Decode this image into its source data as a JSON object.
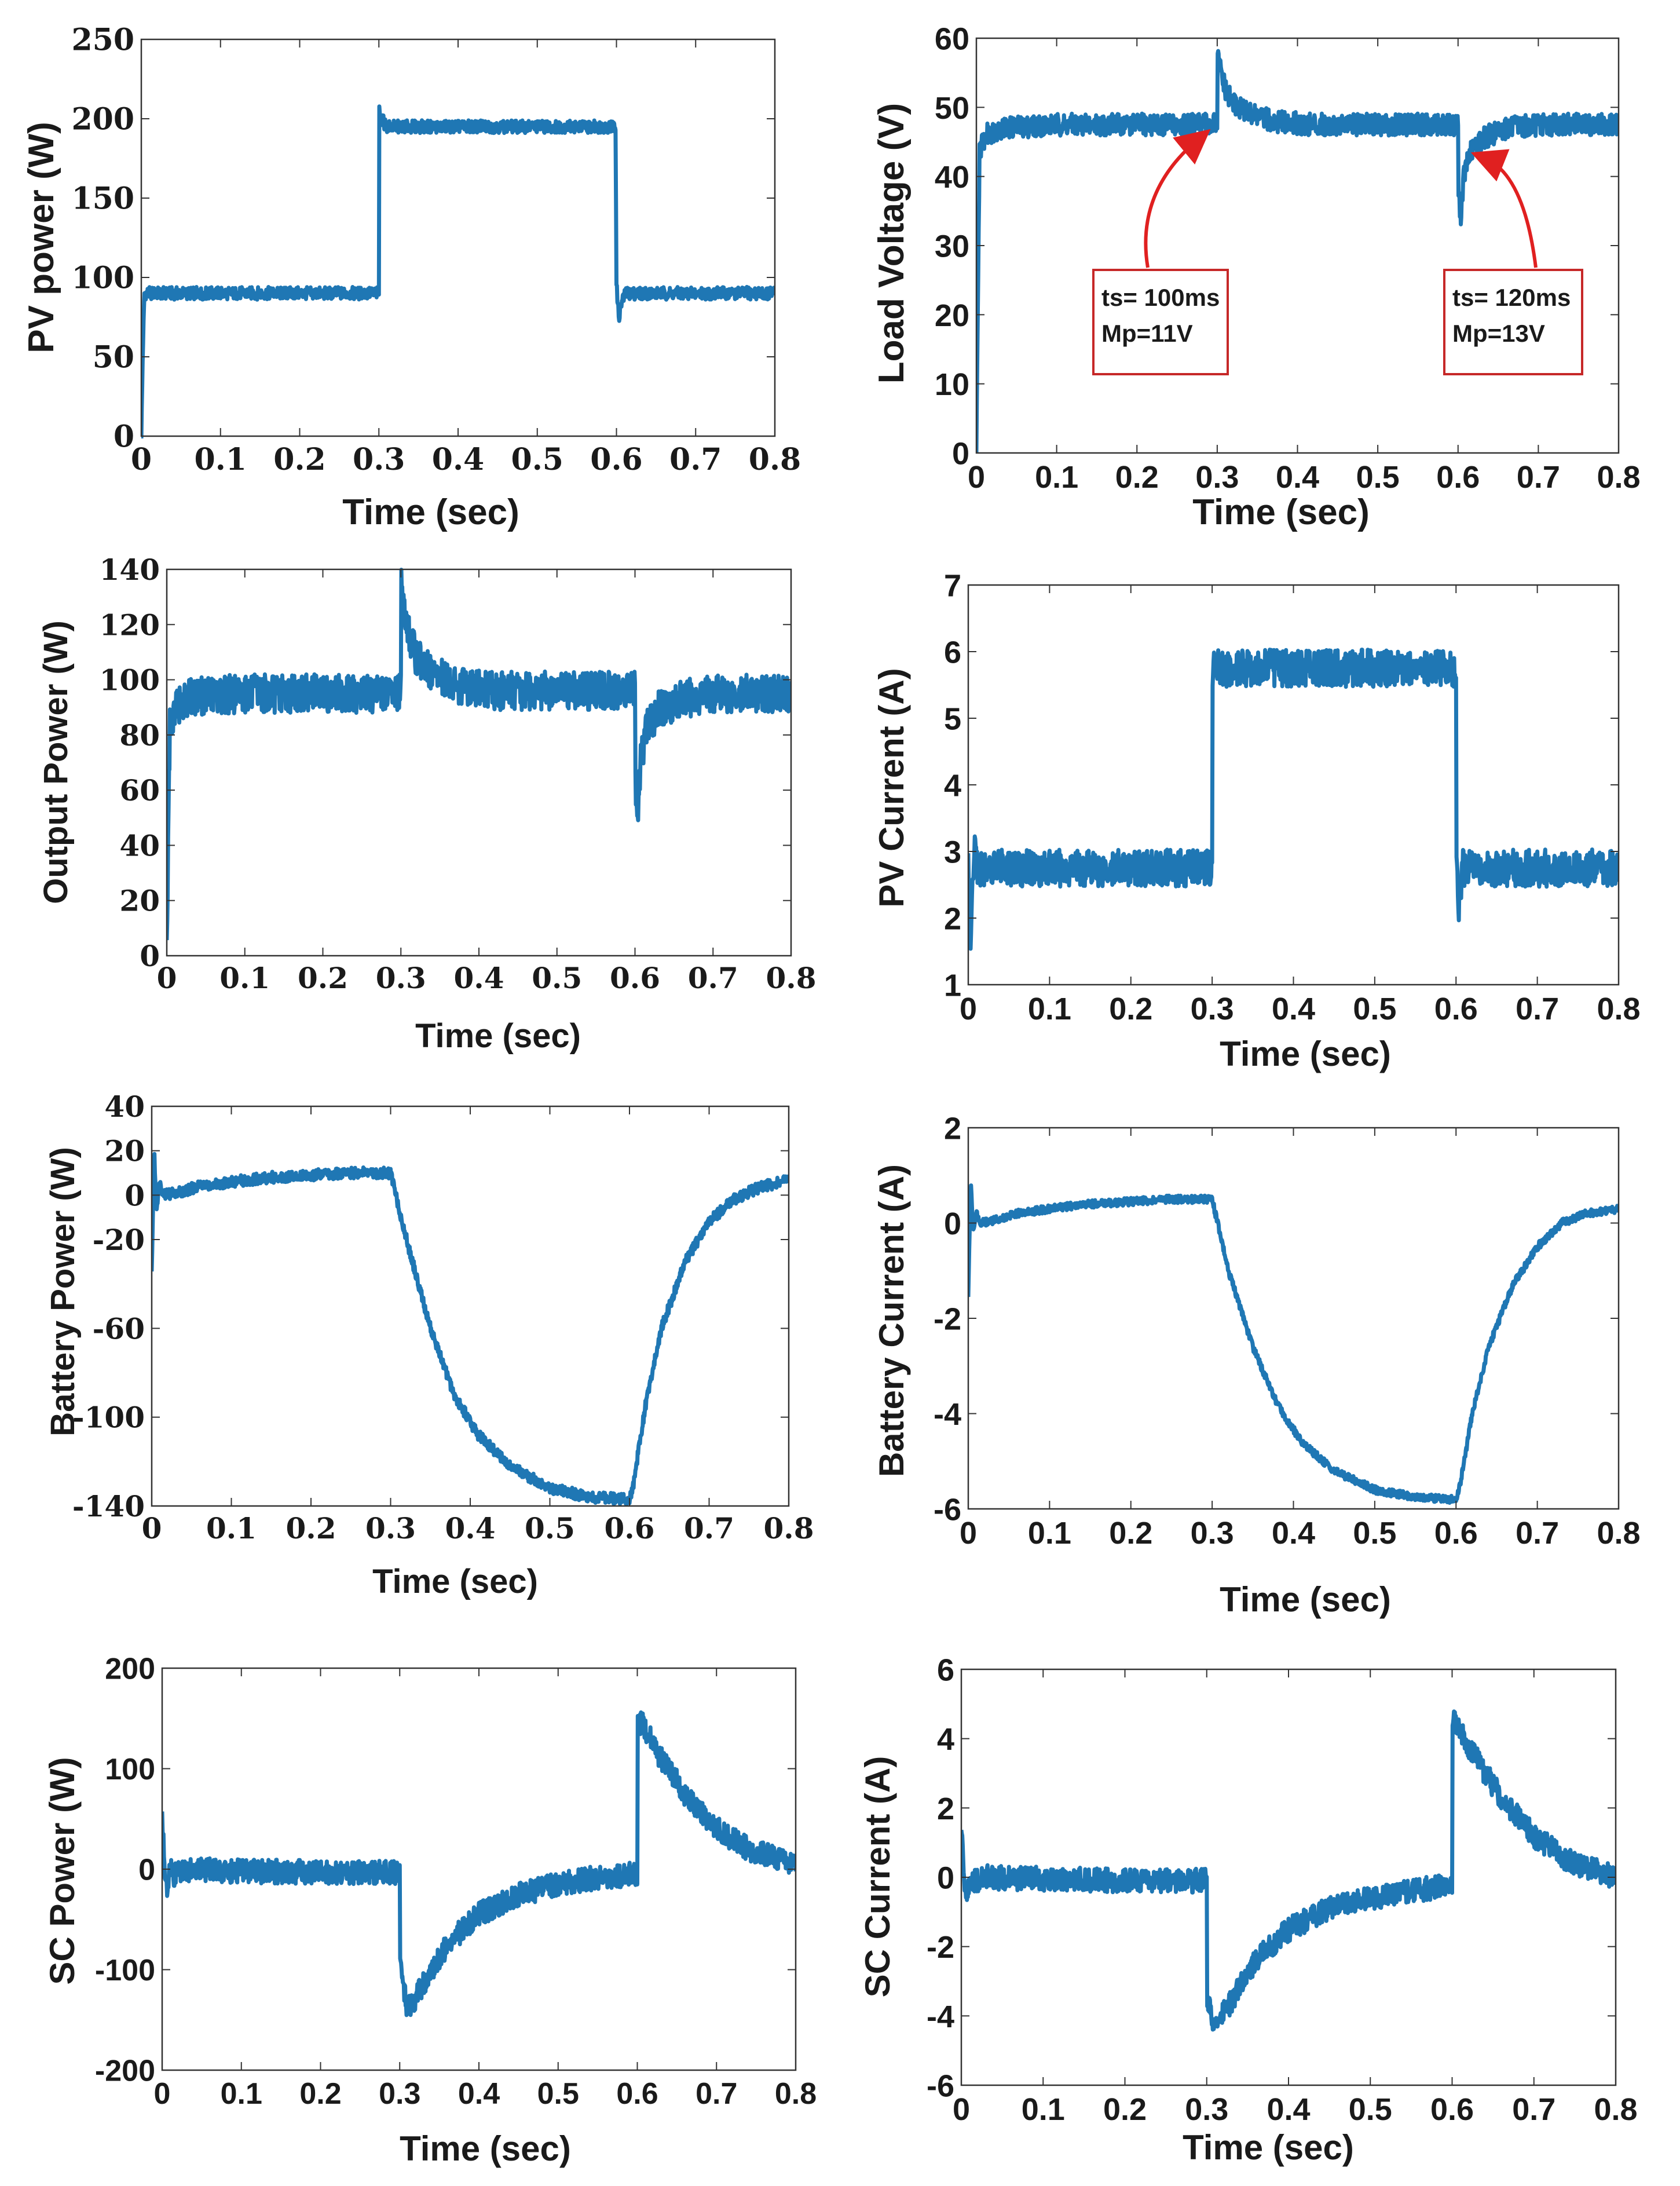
{
  "chart_data": [
    {
      "type": "line",
      "xlabel": "Time (sec)",
      "ylabel": "PV power (W)",
      "xlim": [
        0,
        0.8
      ],
      "ylim": [
        0,
        250
      ],
      "xticks": [
        "0",
        "0.1",
        "0.2",
        "0.3",
        "0.4",
        "0.5",
        "0.6",
        "0.7",
        "0.8"
      ],
      "yticks": [
        "0",
        "50",
        "100",
        "150",
        "200",
        "250"
      ],
      "color": "#1f77b4",
      "noise_amplitude": 4,
      "series": [
        {
          "x": [
            0,
            0.002,
            0.004,
            0.007,
            0.3,
            0.3005,
            0.303,
            0.31,
            0.599,
            0.6,
            0.603,
            0.607,
            0.612,
            0.8
          ],
          "y": [
            0,
            55,
            90,
            90,
            90,
            205,
            200,
            195,
            195,
            95,
            75,
            85,
            90,
            90
          ]
        }
      ]
    },
    {
      "type": "line",
      "xlabel": "Time (sec)",
      "ylabel": "Load Voltage (V)",
      "xlim": [
        0,
        0.8
      ],
      "ylim": [
        0,
        60
      ],
      "xticks": [
        "0",
        "0.1",
        "0.2",
        "0.3",
        "0.4",
        "0.5",
        "0.6",
        "0.7",
        "0.8"
      ],
      "yticks": [
        "0",
        "10",
        "20",
        "30",
        "40",
        "50",
        "60"
      ],
      "color": "#1f77b4",
      "noise_amplitude": 1.6,
      "series": [
        {
          "x": [
            0,
            0.004,
            0.012,
            0.03,
            0.1,
            0.3,
            0.3005,
            0.303,
            0.31,
            0.32,
            0.34,
            0.37,
            0.42,
            0.6,
            0.6005,
            0.603,
            0.607,
            0.615,
            0.63,
            0.66,
            0.7,
            0.8
          ],
          "y": [
            0,
            44,
            46,
            47,
            47.5,
            47.5,
            57,
            56,
            52.5,
            50.5,
            49,
            48,
            47.5,
            47.5,
            38,
            34,
            40,
            43.5,
            45.5,
            47,
            47.5,
            47.5
          ]
        }
      ],
      "annotations": [
        {
          "text_lines": [
            "ts= 100ms",
            "Mp=11V"
          ]
        },
        {
          "text_lines": [
            "ts= 120ms",
            "Mp=13V"
          ]
        }
      ]
    },
    {
      "type": "line",
      "xlabel": "Time (sec)",
      "ylabel": "Output Power (W)",
      "xlim": [
        0,
        0.8
      ],
      "ylim": [
        0,
        140
      ],
      "xticks": [
        "0",
        "0.1",
        "0.2",
        "0.3",
        "0.4",
        "0.5",
        "0.6",
        "0.7",
        "0.8"
      ],
      "yticks": [
        "0",
        "20",
        "40",
        "60",
        "80",
        "100",
        "120",
        "140"
      ],
      "color": "#1f77b4",
      "noise_amplitude": 7,
      "series": [
        {
          "x": [
            0,
            0.004,
            0.012,
            0.03,
            0.1,
            0.3,
            0.3005,
            0.303,
            0.31,
            0.32,
            0.34,
            0.37,
            0.42,
            0.6,
            0.6005,
            0.603,
            0.607,
            0.615,
            0.63,
            0.66,
            0.7,
            0.8
          ],
          "y": [
            0,
            85,
            90,
            94,
            95,
            95,
            138,
            130,
            116,
            108,
            102,
            98,
            96,
            96,
            62,
            48,
            70,
            83,
            89,
            93,
            95,
            95
          ]
        }
      ]
    },
    {
      "type": "line",
      "xlabel": "Time (sec)",
      "ylabel": "PV Current (A)",
      "xlim": [
        0,
        0.8
      ],
      "ylim": [
        1,
        7
      ],
      "xticks": [
        "0",
        "0.1",
        "0.2",
        "0.3",
        "0.4",
        "0.5",
        "0.6",
        "0.7",
        "0.8"
      ],
      "yticks": [
        "1",
        "2",
        "3",
        "4",
        "5",
        "6",
        "7"
      ],
      "color": "#1f77b4",
      "noise_amplitude": 0.28,
      "series": [
        {
          "x": [
            0,
            0.002,
            0.004,
            0.007,
            0.012,
            0.3,
            0.3005,
            0.305,
            0.6,
            0.6005,
            0.603,
            0.608,
            0.8
          ],
          "y": [
            3.2,
            1.5,
            2.2,
            3.0,
            2.75,
            2.75,
            5.75,
            5.75,
            5.75,
            2.8,
            2.2,
            2.75,
            2.75
          ]
        }
      ]
    },
    {
      "type": "line",
      "xlabel": "Time (sec)",
      "ylabel": "Battery Power (W)",
      "xlim": [
        0,
        0.8
      ],
      "ylim": [
        -140,
        40
      ],
      "xticks": [
        "0",
        "0.1",
        "0.2",
        "0.3",
        "0.4",
        "0.5",
        "0.6",
        "0.7",
        "0.8"
      ],
      "yticks": [
        "-140",
        "-100",
        "-60",
        "-20",
        "0",
        "20",
        "40"
      ],
      "color": "#1f77b4",
      "noise_amplitude": 2.5,
      "series": [
        {
          "x": [
            0,
            0.003,
            0.006,
            0.01,
            0.015,
            0.03,
            0.06,
            0.1,
            0.15,
            0.2,
            0.25,
            0.3,
            0.32,
            0.35,
            0.38,
            0.41,
            0.45,
            0.5,
            0.55,
            0.6,
            0.605,
            0.62,
            0.64,
            0.67,
            0.7,
            0.73,
            0.76,
            0.8
          ],
          "y": [
            -35,
            20,
            -5,
            5,
            0,
            1,
            4,
            6,
            8,
            9,
            10,
            10,
            -20,
            -60,
            -90,
            -108,
            -122,
            -132,
            -136,
            -137,
            -130,
            -95,
            -60,
            -30,
            -12,
            -2,
            3,
            7
          ]
        }
      ]
    },
    {
      "type": "line",
      "xlabel": "Time (sec)",
      "ylabel": "Battery Current (A)",
      "xlim": [
        0,
        0.8
      ],
      "ylim": [
        -6,
        2
      ],
      "xticks": [
        "0",
        "0.1",
        "0.2",
        "0.3",
        "0.4",
        "0.5",
        "0.6",
        "0.7",
        "0.8"
      ],
      "yticks": [
        "-6",
        "-4",
        "-2",
        "0",
        "2"
      ],
      "color": "#1f77b4",
      "noise_amplitude": 0.08,
      "series": [
        {
          "x": [
            0,
            0.003,
            0.006,
            0.01,
            0.015,
            0.03,
            0.06,
            0.1,
            0.15,
            0.2,
            0.25,
            0.3,
            0.32,
            0.35,
            0.38,
            0.41,
            0.45,
            0.5,
            0.55,
            0.6,
            0.605,
            0.62,
            0.64,
            0.67,
            0.7,
            0.73,
            0.76,
            0.8
          ],
          "y": [
            -1.5,
            0.9,
            -0.2,
            0.2,
            0,
            0.05,
            0.2,
            0.3,
            0.4,
            0.45,
            0.5,
            0.5,
            -1.0,
            -2.6,
            -3.8,
            -4.6,
            -5.2,
            -5.6,
            -5.75,
            -5.8,
            -5.5,
            -4.0,
            -2.6,
            -1.3,
            -0.5,
            0,
            0.2,
            0.3
          ]
        }
      ]
    },
    {
      "type": "line",
      "xlabel": "Time (sec)",
      "ylabel": "SC Power (W)",
      "xlim": [
        0,
        0.8
      ],
      "ylim": [
        -200,
        200
      ],
      "xticks": [
        "0",
        "0.1",
        "0.2",
        "0.3",
        "0.4",
        "0.5",
        "0.6",
        "0.7",
        "0.8"
      ],
      "yticks": [
        "-200",
        "-100",
        "0",
        "100",
        "200"
      ],
      "color": "#1f77b4",
      "noise_amplitude": 12,
      "series": [
        {
          "x": [
            0,
            0.003,
            0.006,
            0.01,
            0.015,
            0.03,
            0.1,
            0.2,
            0.3,
            0.3005,
            0.31,
            0.33,
            0.36,
            0.4,
            0.45,
            0.5,
            0.55,
            0.6,
            0.6005,
            0.61,
            0.63,
            0.66,
            0.7,
            0.74,
            0.8
          ],
          "y": [
            55,
            5,
            -20,
            0,
            -5,
            0,
            -2,
            -3,
            -3,
            -100,
            -140,
            -115,
            -75,
            -45,
            -25,
            -15,
            -8,
            -5,
            150,
            140,
            110,
            75,
            40,
            20,
            5
          ]
        }
      ]
    },
    {
      "type": "line",
      "xlabel": "Time (sec)",
      "ylabel": "SC Current (A)",
      "xlim": [
        0,
        0.8
      ],
      "ylim": [
        -6,
        6
      ],
      "xticks": [
        "0",
        "0.1",
        "0.2",
        "0.3",
        "0.4",
        "0.5",
        "0.6",
        "0.7",
        "0.8"
      ],
      "yticks": [
        "-6",
        "-4",
        "-2",
        "0",
        "2",
        "4",
        "6"
      ],
      "color": "#1f77b4",
      "noise_amplitude": 0.35,
      "series": [
        {
          "x": [
            0,
            0.003,
            0.006,
            0.01,
            0.015,
            0.03,
            0.1,
            0.2,
            0.3,
            0.3005,
            0.31,
            0.33,
            0.36,
            0.4,
            0.45,
            0.5,
            0.55,
            0.6,
            0.6005,
            0.61,
            0.63,
            0.66,
            0.7,
            0.74,
            0.8
          ],
          "y": [
            1.5,
            0.2,
            -0.6,
            0,
            -0.1,
            0,
            -0.05,
            -0.1,
            -0.1,
            -3.5,
            -4.3,
            -3.6,
            -2.4,
            -1.5,
            -0.9,
            -0.6,
            -0.4,
            -0.2,
            4.6,
            4.2,
            3.4,
            2.3,
            1.2,
            0.5,
            0
          ]
        }
      ]
    }
  ]
}
